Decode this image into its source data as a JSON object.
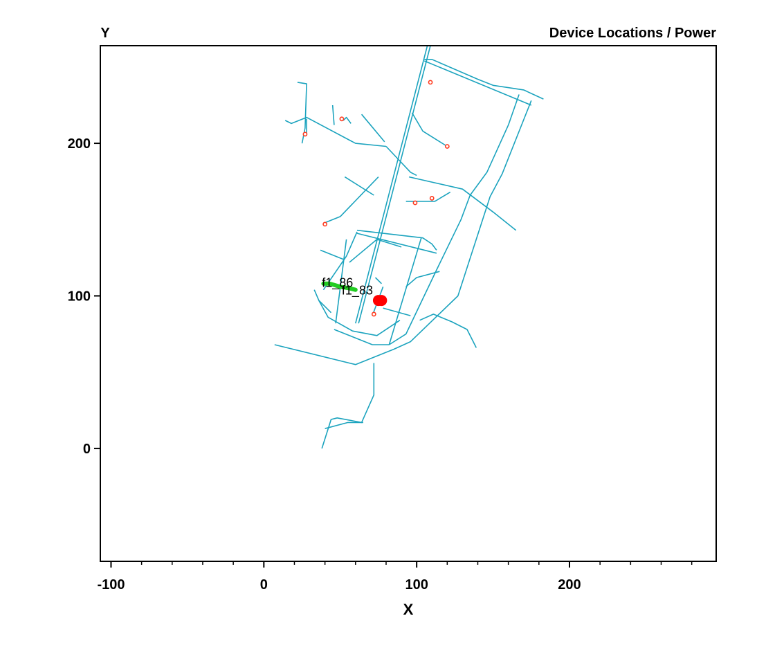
{
  "chart_data": {
    "type": "scatter",
    "title": "Device Locations / Power",
    "xlabel": "X",
    "ylabel": "Y",
    "xlim": [
      -107,
      296
    ],
    "ylim": [
      -74,
      264
    ],
    "x_ticks": [
      -100,
      0,
      100,
      200
    ],
    "y_ticks": [
      0,
      100,
      200
    ],
    "grid": false,
    "colors": {
      "network": "#1ba3be",
      "device": "#ff3b1f",
      "source": "#ff0000",
      "feeder": "#22cc22",
      "frame": "#000000"
    },
    "series": [
      {
        "kind": "network_lines",
        "segments": [
          [
            [
              60,
              82
            ],
            [
              107,
              264
            ]
          ],
          [
            [
              62,
              82
            ],
            [
              109,
              264
            ]
          ],
          [
            [
              105,
              255
            ],
            [
              110,
              255
            ],
            [
              140,
              242
            ],
            [
              150,
              238
            ],
            [
              170,
              235
            ],
            [
              183,
              229
            ]
          ],
          [
            [
              105,
              254
            ],
            [
              175,
              225
            ]
          ],
          [
            [
              175,
              228
            ],
            [
              156,
              180
            ],
            [
              148,
              165
            ],
            [
              127,
              100
            ],
            [
              96,
              70
            ],
            [
              85,
              65
            ],
            [
              60,
              55
            ],
            [
              7,
              68
            ]
          ],
          [
            [
              89,
              84
            ],
            [
              74,
              74
            ],
            [
              58,
              77
            ],
            [
              42,
              86
            ],
            [
              36,
              97
            ]
          ],
          [
            [
              61,
              143
            ],
            [
              104,
              138
            ],
            [
              110,
              134
            ],
            [
              113,
              130
            ]
          ],
          [
            [
              61,
              141
            ],
            [
              113,
              128
            ]
          ],
          [
            [
              61,
              142
            ],
            [
              54,
              126
            ],
            [
              39,
              104
            ]
          ],
          [
            [
              103,
              138
            ],
            [
              82,
              68
            ]
          ],
          [
            [
              54,
              137
            ],
            [
              47,
              82
            ]
          ],
          [
            [
              46,
              78
            ],
            [
              71,
              68
            ],
            [
              82,
              68
            ]
          ],
          [
            [
              82,
              68
            ],
            [
              93,
              75
            ],
            [
              113,
              117
            ],
            [
              129,
              150
            ],
            [
              135,
              166
            ],
            [
              146,
              181
            ],
            [
              160,
              212
            ],
            [
              167,
              232
            ]
          ],
          [
            [
              14,
              215
            ],
            [
              18,
              213
            ],
            [
              28,
              217
            ],
            [
              60,
              200
            ],
            [
              80,
              198
            ]
          ],
          [
            [
              22,
              240
            ],
            [
              28,
              239
            ],
            [
              27,
              210
            ],
            [
              25,
              200
            ]
          ],
          [
            [
              28,
              216
            ],
            [
              28,
              205
            ]
          ],
          [
            [
              52,
              215
            ],
            [
              54,
              217
            ],
            [
              57,
              213
            ]
          ],
          [
            [
              45,
              225
            ],
            [
              46,
              212
            ]
          ],
          [
            [
              80,
              198
            ],
            [
              96,
              181
            ],
            [
              100,
              179
            ]
          ],
          [
            [
              64,
              219
            ],
            [
              79,
              201
            ]
          ],
          [
            [
              97,
              220
            ],
            [
              104,
              208
            ],
            [
              120,
              198
            ]
          ],
          [
            [
              95,
              178
            ],
            [
              130,
              170
            ],
            [
              150,
              155
            ],
            [
              165,
              143
            ]
          ],
          [
            [
              93,
              162
            ],
            [
              112,
              162
            ],
            [
              122,
              168
            ]
          ],
          [
            [
              40,
              148
            ],
            [
              50,
              152
            ],
            [
              75,
              178
            ]
          ],
          [
            [
              53,
              178
            ],
            [
              72,
              166
            ]
          ],
          [
            [
              56,
              122
            ],
            [
              74,
              137
            ],
            [
              90,
              132
            ]
          ],
          [
            [
              37,
              130
            ],
            [
              52,
              124
            ]
          ],
          [
            [
              93,
              106
            ],
            [
              100,
              112
            ],
            [
              115,
              116
            ]
          ],
          [
            [
              102,
              84
            ],
            [
              111,
              88
            ],
            [
              123,
              83
            ],
            [
              133,
              78
            ],
            [
              139,
              66
            ]
          ],
          [
            [
              72,
              56
            ],
            [
              72,
              35
            ],
            [
              64,
              17
            ],
            [
              48,
              20
            ],
            [
              44,
              19
            ],
            [
              38,
              0
            ]
          ],
          [
            [
              40,
              13
            ],
            [
              55,
              17
            ],
            [
              65,
              17
            ]
          ],
          [
            [
              78,
              92
            ],
            [
              96,
              87
            ]
          ],
          [
            [
              78,
              106
            ],
            [
              71,
              87
            ]
          ],
          [
            [
              73,
              112
            ],
            [
              77,
              108
            ]
          ],
          [
            [
              44,
              89
            ],
            [
              36,
              97
            ],
            [
              33,
              104
            ]
          ]
        ]
      },
      {
        "name": "devices",
        "points": [
          {
            "x": 109,
            "y": 240
          },
          {
            "x": 51,
            "y": 216
          },
          {
            "x": 27,
            "y": 206
          },
          {
            "x": 120,
            "y": 198
          },
          {
            "x": 110,
            "y": 164
          },
          {
            "x": 99,
            "y": 161
          },
          {
            "x": 40,
            "y": 147
          },
          {
            "x": 72,
            "y": 88
          }
        ]
      },
      {
        "name": "source",
        "points": [
          {
            "x": 75,
            "y": 97
          },
          {
            "x": 77,
            "y": 97
          }
        ]
      },
      {
        "name": "feeders",
        "feeder_path": [
          [
            39,
            108
          ],
          [
            43,
            108
          ],
          [
            50,
            106
          ],
          [
            56,
            105
          ],
          [
            60,
            104
          ]
        ],
        "labels": [
          {
            "text": "f1_86",
            "x": 38,
            "y": 106
          },
          {
            "text": "f1_83",
            "x": 51,
            "y": 101
          }
        ]
      }
    ]
  }
}
